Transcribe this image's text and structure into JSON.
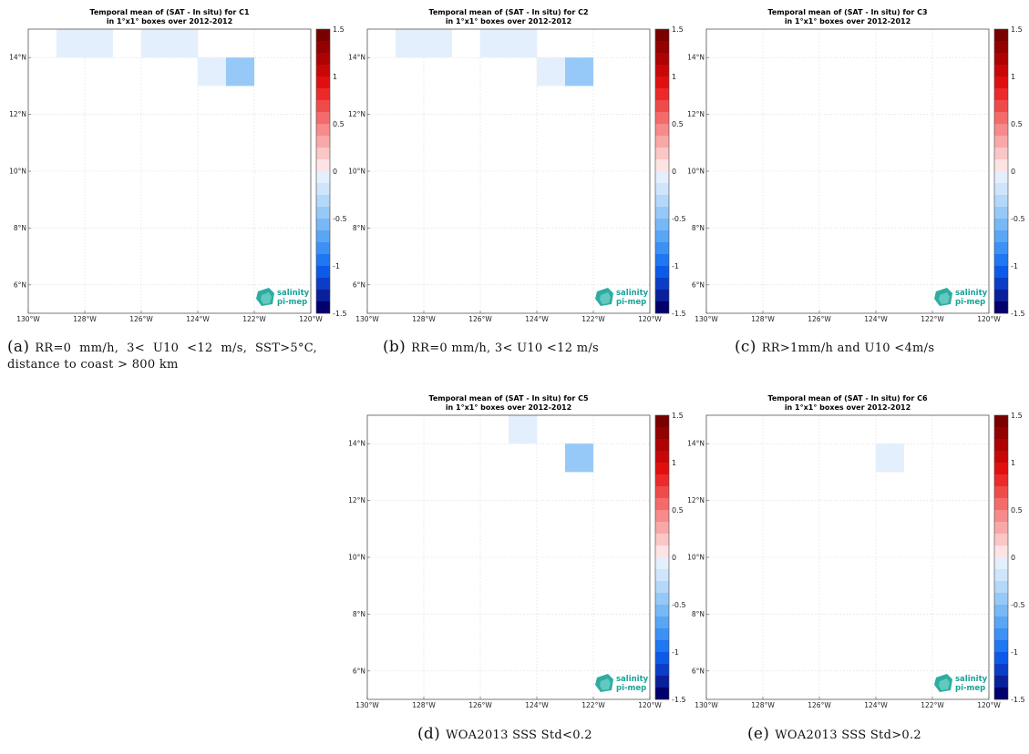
{
  "colors": {
    "cmap_negative": [
      "#03006e",
      "#0a1f9a",
      "#0b3dc7",
      "#0e5ae8",
      "#1f77f2",
      "#3d91f4",
      "#5aa6f5",
      "#79b8f6",
      "#97c9f8",
      "#b4d8fa",
      "#cfe5fb",
      "#e3effc"
    ],
    "cmap_positive": [
      "#fde3e3",
      "#fbc6c6",
      "#f9a8a8",
      "#f78a8a",
      "#f46b6b",
      "#f04b4b",
      "#ec2a2a",
      "#e01010",
      "#c80808",
      "#ad0303",
      "#930101",
      "#7a0000"
    ],
    "logo": "#17a398",
    "grid": "#d8d8d8"
  },
  "figure": {
    "logo": {
      "line1": "salinity",
      "line2": "pi-mep"
    },
    "captions": {
      "a": {
        "label": "(a)",
        "text": "RR=0 mm/h, 3< U10 <12 m/s, SST>5°C, distance to coast > 800 km"
      },
      "b": {
        "label": "(b)",
        "text": "RR=0 mm/h, 3< U10 <12 m/s"
      },
      "c": {
        "label": "(c)",
        "text": "RR>1mm/h and U10 <4m/s"
      },
      "d": {
        "label": "(d)",
        "text": "WOA2013 SSS Std<0.2"
      },
      "e": {
        "label": "(e)",
        "text": "WOA2013 SSS Std>0.2"
      }
    }
  },
  "chart_data": [
    {
      "type": "heatmap",
      "title": "Temporal mean of (SAT - In situ) for C1",
      "subtitle": "in 1°x1° boxes over 2012-2012",
      "xticks": [
        "130°W",
        "128°W",
        "126°W",
        "124°W",
        "122°W",
        "120°W"
      ],
      "yticks": [
        "6°N",
        "8°N",
        "10°N",
        "12°N",
        "14°N"
      ],
      "xlim": [
        -130,
        -120
      ],
      "ylim": [
        5,
        15
      ],
      "colorbar_ticks": [
        "1.5",
        "1",
        "0.5",
        "0",
        "-0.5",
        "-1",
        "-1.5"
      ],
      "clim": [
        -1.5,
        1.5
      ],
      "grid": true,
      "cells": [
        {
          "lon": -129,
          "lat": 14,
          "value": -0.1
        },
        {
          "lon": -128,
          "lat": 14,
          "value": -0.1
        },
        {
          "lon": -126,
          "lat": 14,
          "value": -0.1
        },
        {
          "lon": -125,
          "lat": 14,
          "value": -0.1
        },
        {
          "lon": -124,
          "lat": 13,
          "value": -0.1
        },
        {
          "lon": -123,
          "lat": 13,
          "value": -0.4
        }
      ]
    },
    {
      "type": "heatmap",
      "title": "Temporal mean of (SAT - In situ) for C2",
      "subtitle": "in 1°x1° boxes over 2012-2012",
      "xticks": [
        "130°W",
        "128°W",
        "126°W",
        "124°W",
        "122°W",
        "120°W"
      ],
      "yticks": [
        "6°N",
        "8°N",
        "10°N",
        "12°N",
        "14°N"
      ],
      "xlim": [
        -130,
        -120
      ],
      "ylim": [
        5,
        15
      ],
      "colorbar_ticks": [
        "1.5",
        "1",
        "0.5",
        "0",
        "-0.5",
        "-1",
        "-1.5"
      ],
      "clim": [
        -1.5,
        1.5
      ],
      "grid": true,
      "cells": [
        {
          "lon": -129,
          "lat": 14,
          "value": -0.1
        },
        {
          "lon": -128,
          "lat": 14,
          "value": -0.1
        },
        {
          "lon": -126,
          "lat": 14,
          "value": -0.1
        },
        {
          "lon": -125,
          "lat": 14,
          "value": -0.1
        },
        {
          "lon": -124,
          "lat": 13,
          "value": -0.1
        },
        {
          "lon": -123,
          "lat": 13,
          "value": -0.4
        }
      ]
    },
    {
      "type": "heatmap",
      "title": "Temporal mean of (SAT - In situ) for C3",
      "subtitle": "in 1°x1° boxes over 2012-2012",
      "xticks": [
        "130°W",
        "128°W",
        "126°W",
        "124°W",
        "122°W",
        "120°W"
      ],
      "yticks": [
        "6°N",
        "8°N",
        "10°N",
        "12°N",
        "14°N"
      ],
      "xlim": [
        -130,
        -120
      ],
      "ylim": [
        5,
        15
      ],
      "colorbar_ticks": [
        "1.5",
        "1",
        "0.5",
        "0",
        "-0.5",
        "-1",
        "-1.5"
      ],
      "clim": [
        -1.5,
        1.5
      ],
      "grid": true,
      "cells": []
    },
    {
      "type": "heatmap",
      "title": "Temporal mean of (SAT - In situ) for C5",
      "subtitle": "in 1°x1° boxes over 2012-2012",
      "xticks": [
        "130°W",
        "128°W",
        "126°W",
        "124°W",
        "122°W",
        "120°W"
      ],
      "yticks": [
        "6°N",
        "8°N",
        "10°N",
        "12°N",
        "14°N"
      ],
      "xlim": [
        -130,
        -120
      ],
      "ylim": [
        5,
        15
      ],
      "colorbar_ticks": [
        "1.5",
        "1",
        "0.5",
        "0",
        "-0.5",
        "-1",
        "-1.5"
      ],
      "clim": [
        -1.5,
        1.5
      ],
      "grid": true,
      "cells": [
        {
          "lon": -125,
          "lat": 14,
          "value": -0.1
        },
        {
          "lon": -123,
          "lat": 13,
          "value": -0.4
        }
      ]
    },
    {
      "type": "heatmap",
      "title": "Temporal mean of (SAT - In situ) for C6",
      "subtitle": "in 1°x1° boxes over 2012-2012",
      "xticks": [
        "130°W",
        "128°W",
        "126°W",
        "124°W",
        "122°W",
        "120°W"
      ],
      "yticks": [
        "6°N",
        "8°N",
        "10°N",
        "12°N",
        "14°N"
      ],
      "xlim": [
        -130,
        -120
      ],
      "ylim": [
        5,
        15
      ],
      "colorbar_ticks": [
        "1.5",
        "1",
        "0.5",
        "0",
        "-0.5",
        "-1",
        "-1.5"
      ],
      "clim": [
        -1.5,
        1.5
      ],
      "grid": true,
      "cells": [
        {
          "lon": -124,
          "lat": 13,
          "value": -0.1
        }
      ]
    }
  ]
}
